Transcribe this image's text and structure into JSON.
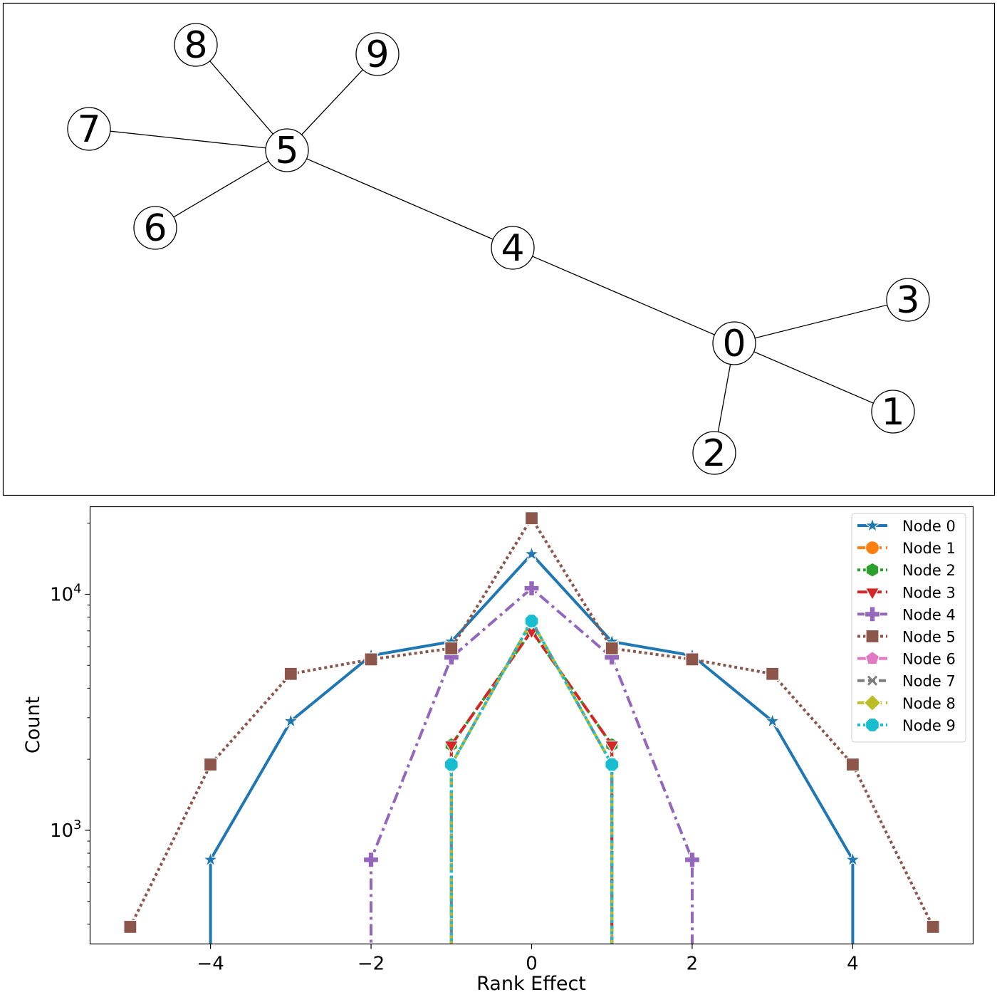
{
  "graph": {
    "nodes": [
      {
        "id": "0",
        "label": "0"
      },
      {
        "id": "1",
        "label": "1"
      },
      {
        "id": "2",
        "label": "2"
      },
      {
        "id": "3",
        "label": "3"
      },
      {
        "id": "4",
        "label": "4"
      },
      {
        "id": "5",
        "label": "5"
      },
      {
        "id": "6",
        "label": "6"
      },
      {
        "id": "7",
        "label": "7"
      },
      {
        "id": "8",
        "label": "8"
      },
      {
        "id": "9",
        "label": "9"
      }
    ],
    "edges": [
      [
        "5",
        "8"
      ],
      [
        "5",
        "9"
      ],
      [
        "5",
        "7"
      ],
      [
        "5",
        "6"
      ],
      [
        "5",
        "4"
      ],
      [
        "4",
        "0"
      ],
      [
        "0",
        "3"
      ],
      [
        "0",
        "1"
      ],
      [
        "0",
        "2"
      ]
    ]
  },
  "chart_data": {
    "type": "line",
    "title": "",
    "xlabel": "Rank Effect",
    "ylabel": "Count",
    "yscale": "log",
    "xlim": [
      -5.5,
      5.5
    ],
    "ylim": [
      330,
      23500
    ],
    "xticks": [
      -4,
      -2,
      0,
      2,
      4
    ],
    "xtick_labels": [
      "−4",
      "−2",
      "0",
      "2",
      "4"
    ],
    "yticks": [
      1000,
      10000
    ],
    "ytick_labels": [
      [
        "10",
        "3"
      ],
      [
        "10",
        "4"
      ]
    ],
    "grid": false,
    "legend_position": "top-right",
    "series": [
      {
        "name": "Node 0",
        "color": "#1f77b4",
        "marker": "star",
        "dash": "",
        "x": [
          -4,
          -3,
          -2,
          -1,
          0,
          1,
          2,
          3,
          4
        ],
        "y": [
          750,
          2900,
          5500,
          6300,
          14800,
          6300,
          5500,
          2900,
          750
        ],
        "drop_ends": true
      },
      {
        "name": "Node 1",
        "color": "#ff7f0e",
        "marker": "circle",
        "dash": "14 6",
        "x": [
          -1,
          0,
          1
        ],
        "y": [
          2300,
          7000,
          2300
        ],
        "drop_ends": true
      },
      {
        "name": "Node 2",
        "color": "#2ca02c",
        "marker": "hexagon",
        "dash": "4 4",
        "x": [
          -1,
          0,
          1
        ],
        "y": [
          2300,
          7000,
          2300
        ],
        "drop_ends": true
      },
      {
        "name": "Node 3",
        "color": "#d62728",
        "marker": "triangle-down",
        "dash": "14 6",
        "x": [
          -1,
          0,
          1
        ],
        "y": [
          2300,
          7000,
          2300
        ],
        "drop_ends": true
      },
      {
        "name": "Node 4",
        "color": "#9467bd",
        "marker": "plus",
        "dash": "16 6 4 6",
        "x": [
          -2,
          -1,
          0,
          1,
          2
        ],
        "y": [
          750,
          5400,
          10600,
          5400,
          750
        ],
        "drop_ends": true
      },
      {
        "name": "Node 5",
        "color": "#8c564b",
        "marker": "square",
        "dash": "4 4",
        "x": [
          -5,
          -4,
          -3,
          -2,
          -1,
          0,
          1,
          2,
          3,
          4,
          5
        ],
        "y": [
          390,
          1900,
          4600,
          5300,
          5900,
          21000,
          5900,
          5300,
          4600,
          1900,
          390
        ],
        "drop_ends": false
      },
      {
        "name": "Node 6",
        "color": "#e377c2",
        "marker": "pentagon",
        "dash": "14 6 4 6",
        "x": [
          -1,
          0,
          1
        ],
        "y": [
          1900,
          7700,
          1900
        ],
        "drop_ends": true
      },
      {
        "name": "Node 7",
        "color": "#7f7f7f",
        "marker": "x",
        "dash": "10 5",
        "x": [
          -1,
          0,
          1
        ],
        "y": [
          1900,
          7700,
          1900
        ],
        "drop_ends": true
      },
      {
        "name": "Node 8",
        "color": "#bcbd22",
        "marker": "diamond",
        "dash": "14 6",
        "x": [
          -1,
          0,
          1
        ],
        "y": [
          1900,
          7700,
          1900
        ],
        "drop_ends": true
      },
      {
        "name": "Node 9",
        "color": "#17becf",
        "marker": "octagon",
        "dash": "4 4",
        "x": [
          -1,
          0,
          1
        ],
        "y": [
          1900,
          7700,
          1900
        ],
        "drop_ends": true
      }
    ]
  }
}
